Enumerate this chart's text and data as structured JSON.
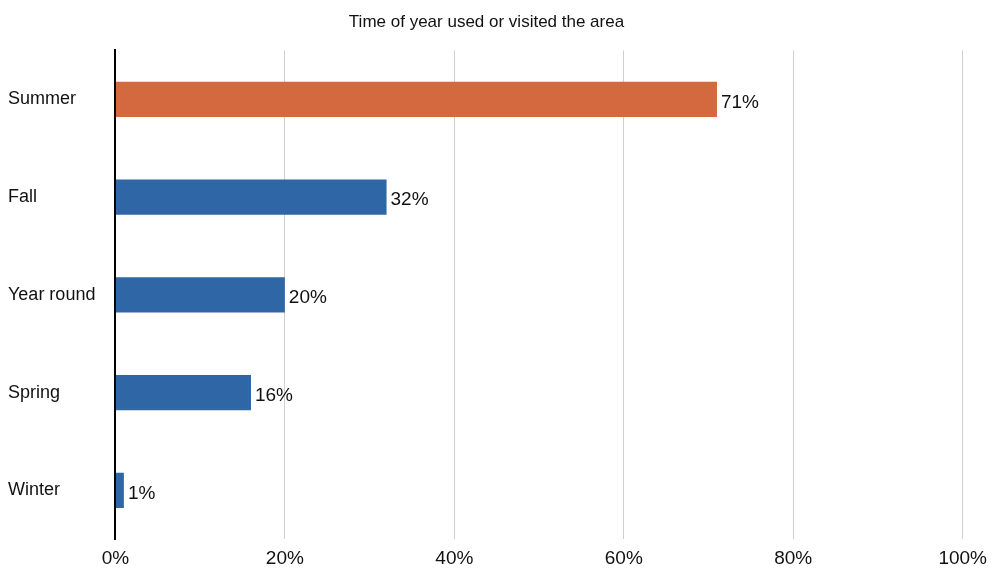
{
  "chart_data": {
    "type": "bar",
    "orientation": "horizontal",
    "title": "Time of year used or visited the area",
    "categories": [
      "Summer",
      "Fall",
      "Year round",
      "Spring",
      "Winter"
    ],
    "values": [
      71,
      32,
      20,
      16,
      1
    ],
    "colors": [
      "#d4683f",
      "#2f66a5",
      "#2f66a5",
      "#2f66a5",
      "#2f66a5"
    ],
    "value_labels": [
      "71%",
      "32%",
      "20%",
      "16%",
      "1%"
    ],
    "xlim": [
      0,
      100
    ],
    "xticks": [
      {
        "value": 0,
        "label": "0%"
      },
      {
        "value": 20,
        "label": "20%"
      },
      {
        "value": 40,
        "label": "40%"
      },
      {
        "value": 60,
        "label": "60%"
      },
      {
        "value": 80,
        "label": "80%"
      },
      {
        "value": 100,
        "label": "100%"
      }
    ],
    "grid": "x",
    "legend": false
  }
}
